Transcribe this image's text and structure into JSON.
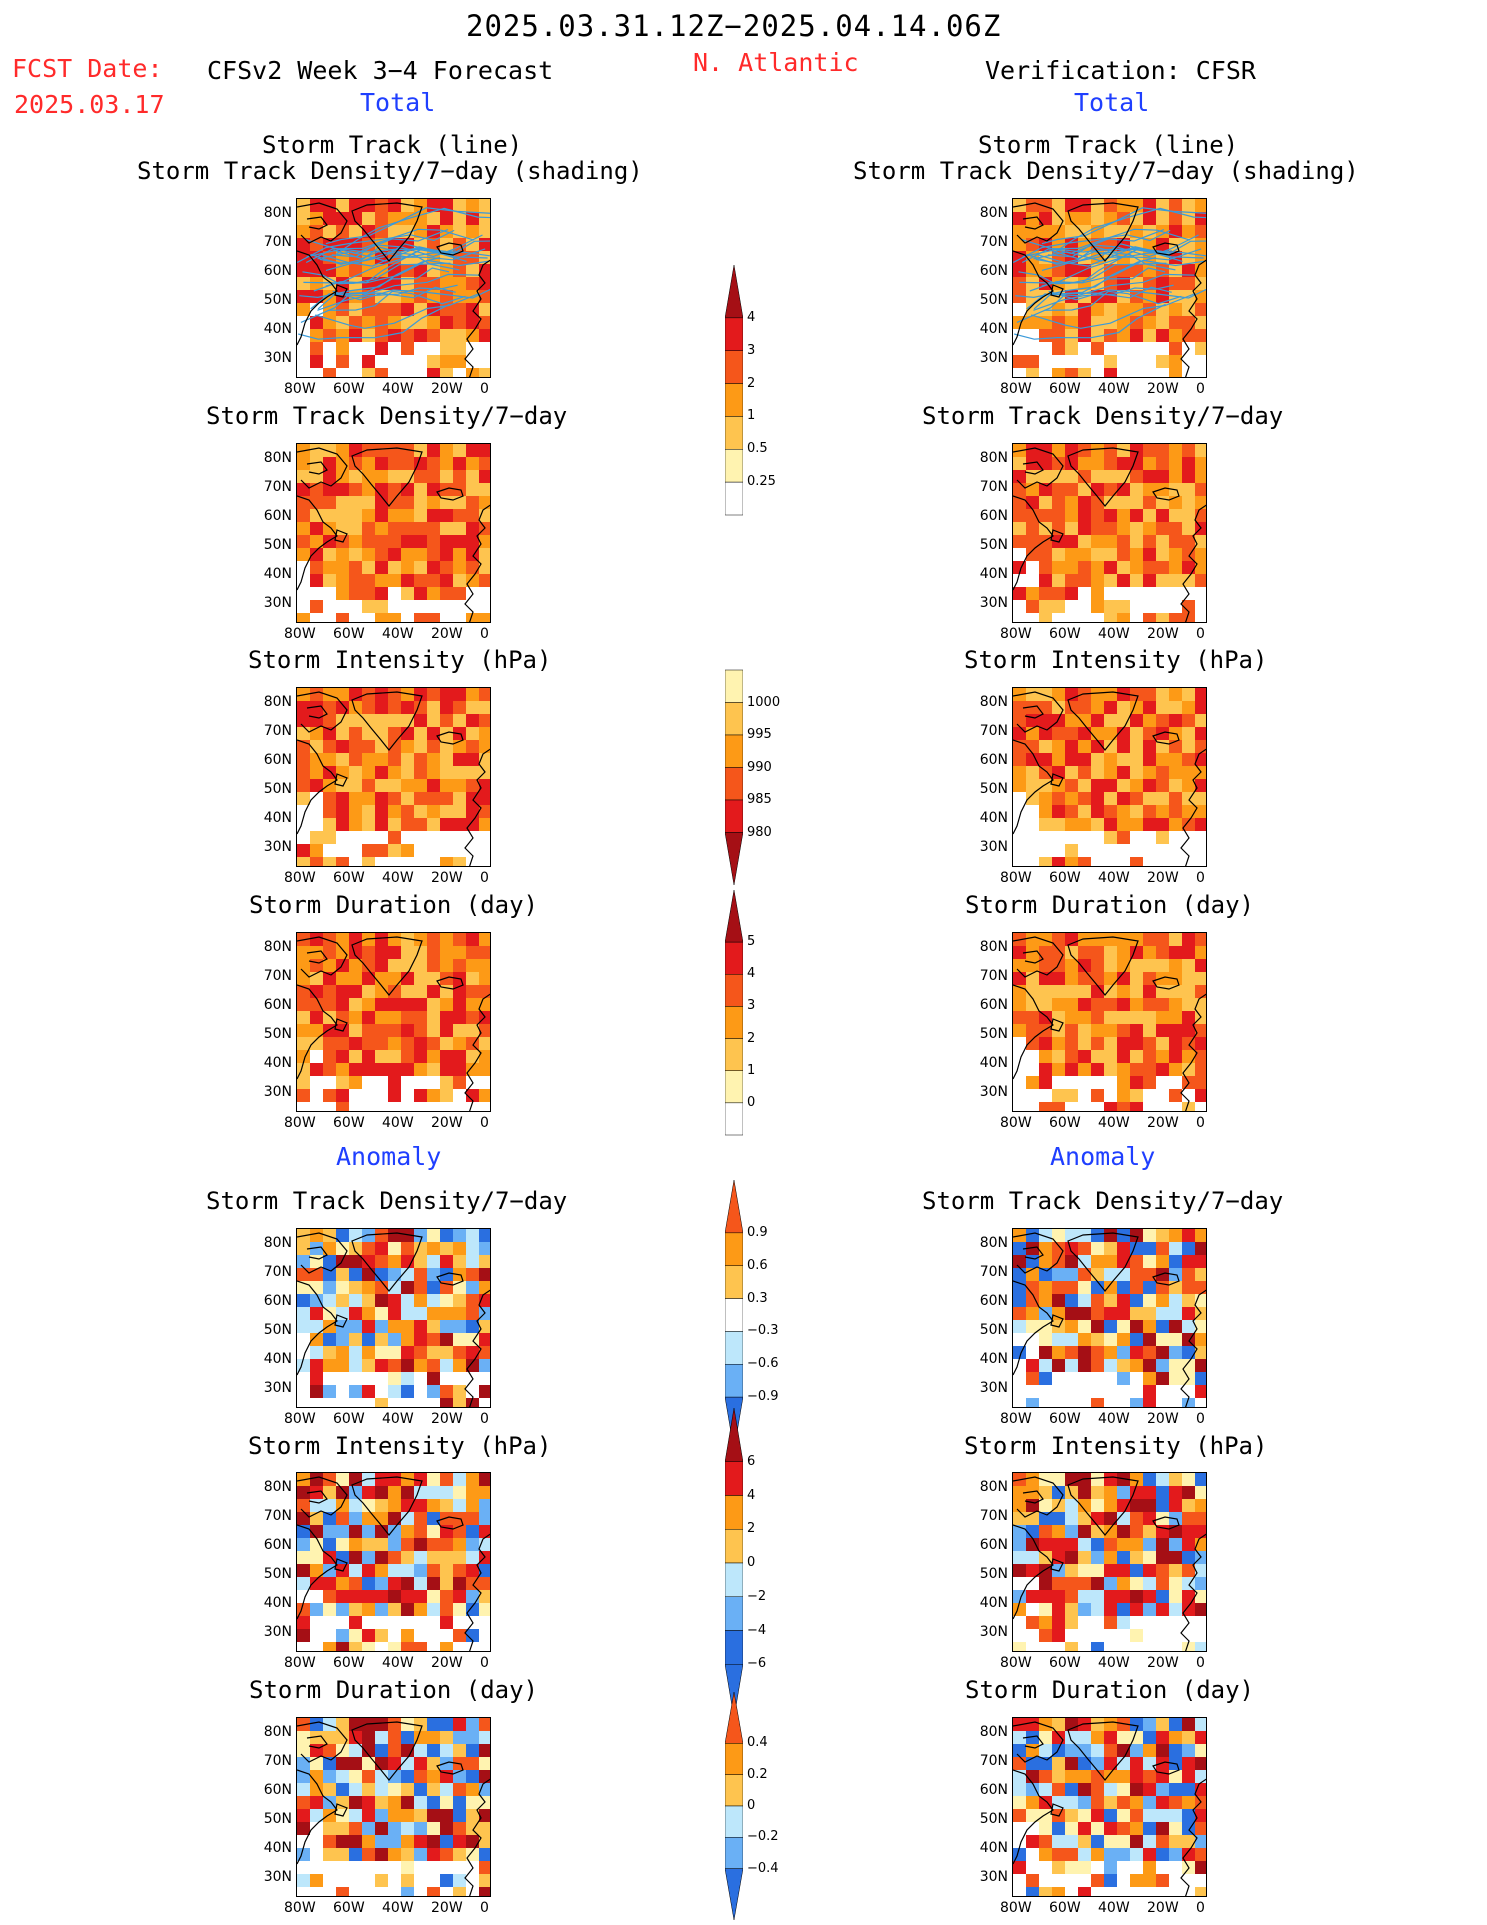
{
  "header": {
    "date_range": "2025.03.31.12Z−2025.04.14.06Z",
    "fcst_label": "FCST Date:",
    "fcst_date": "2025.03.17",
    "left_title": "CFSv2 Week 3−4 Forecast",
    "region": "N. Atlantic",
    "right_title": "Verification: CFSR",
    "total_left": "Total",
    "total_right": "Total",
    "anomaly_left": "Anomaly",
    "anomaly_right": "Anomaly"
  },
  "panel_titles": {
    "track_line": "Storm Track (line)",
    "track_shading": "Storm Track Density/7−day (shading)",
    "density": "Storm Track Density/7−day",
    "intensity": "Storm Intensity (hPa)",
    "duration": "Storm Duration (day)"
  },
  "axes": {
    "lat": [
      "80N",
      "70N",
      "60N",
      "50N",
      "40N",
      "30N"
    ],
    "lon": [
      "80W",
      "60W",
      "40W",
      "20W",
      "0"
    ]
  },
  "colorbars": {
    "density_total": [
      "4",
      "3",
      "2",
      "1",
      "0.5",
      "0.25"
    ],
    "intensity_total": [
      "1000",
      "995",
      "990",
      "985",
      "980"
    ],
    "duration_total": [
      "5",
      "4",
      "3",
      "2",
      "1",
      "0"
    ],
    "density_anom": [
      "0.9",
      "0.6",
      "0.3",
      "−0.3",
      "−0.6",
      "−0.9"
    ],
    "intensity_anom": [
      "6",
      "4",
      "2",
      "0",
      "−2",
      "−4",
      "−6"
    ],
    "duration_anom": [
      "0.4",
      "0.2",
      "0",
      "−0.2",
      "−0.4"
    ]
  },
  "colors": {
    "dark_red": "#a50f15",
    "red": "#e31a1c",
    "orange_red": "#f5561b",
    "orange": "#fd9a16",
    "light_orange": "#fec44f",
    "yellow": "#fff3b0",
    "light_blue": "#bde7fb",
    "mid_blue": "#6ab0f5",
    "blue": "#2a6fe0",
    "track_line": "#3a9ad9"
  }
}
